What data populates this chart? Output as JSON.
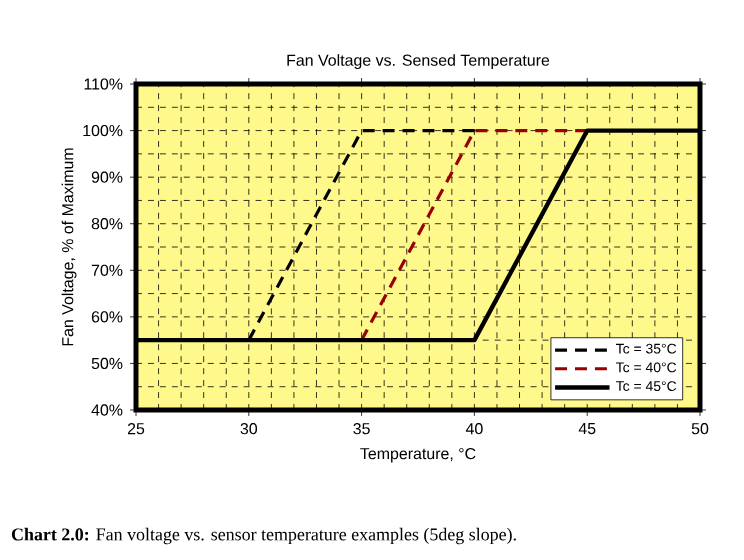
{
  "chart_data": {
    "type": "line",
    "title": "Fan Voltage vs. Sensed Temperature",
    "xlabel": "Temperature, °C",
    "ylabel": "Fan Voltage, % of Maximum",
    "series": [
      {
        "name": "Tc = 35°C",
        "color": "#000000",
        "line_style": "dashed",
        "x": [
          30,
          35,
          40
        ],
        "values": [
          55,
          100,
          100
        ]
      },
      {
        "name": "Tc = 40°C",
        "color": "#990000",
        "line_style": "dashed",
        "x": [
          35,
          40,
          45
        ],
        "values": [
          55,
          100,
          100
        ]
      },
      {
        "name": "Tc = 45°C",
        "color": "#000000",
        "line_style": "solid",
        "x": [
          25,
          40,
          45,
          50
        ],
        "values": [
          55,
          55,
          100,
          100
        ]
      }
    ],
    "xlim": [
      25,
      50
    ],
    "xticks": [
      25,
      30,
      35,
      40,
      45,
      50
    ],
    "ylim": [
      40,
      110
    ],
    "yticks": [
      {
        "value": 40,
        "label": "40%"
      },
      {
        "value": 50,
        "label": "50%"
      },
      {
        "value": 60,
        "label": "60%"
      },
      {
        "value": 70,
        "label": "70%"
      },
      {
        "value": 80,
        "label": "80%"
      },
      {
        "value": 90,
        "label": "90%"
      },
      {
        "value": 100,
        "label": "100%"
      },
      {
        "value": 110,
        "label": "110%"
      }
    ],
    "grid": true,
    "legend": "bottom right",
    "marker": "none",
    "annotations": [
      "**Chart 2.0:** Fan voltage vs. sensor temperature examples (5deg slope)."
    ]
  }
}
